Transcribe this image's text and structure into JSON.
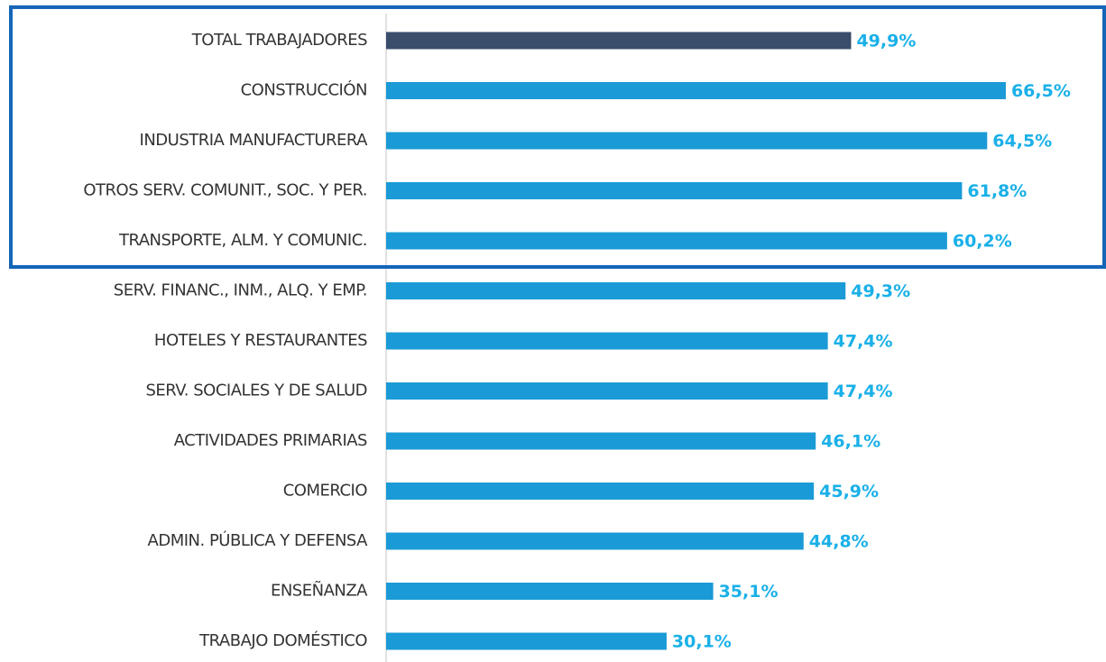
{
  "chart_data": {
    "type": "hbar",
    "categories": [
      "TOTAL TRABAJADORES",
      "CONSTRUCCIÓN",
      "INDUSTRIA MANUFACTURERA",
      "OTROS SERV. COMUNIT., SOC. Y PER.",
      "TRANSPORTE, ALM. Y COMUNIC.",
      "SERV. FINANC., INM., ALQ. Y EMP.",
      "HOTELES Y RESTAURANTES",
      "SERV. SOCIALES Y DE SALUD",
      "ACTIVIDADES PRIMARIAS",
      "COMERCIO",
      "ADMIN. PÚBLICA Y DEFENSA",
      "ENSEÑANZA",
      "TRABAJO DOMÉSTICO"
    ],
    "values": [
      49.9,
      66.5,
      64.5,
      61.8,
      60.2,
      49.3,
      47.4,
      47.4,
      46.1,
      45.9,
      44.8,
      35.1,
      30.1
    ],
    "value_labels": [
      "49,9%",
      "66,5%",
      "64,5%",
      "61,8%",
      "60,2%",
      "49,3%",
      "47,4%",
      "47,4%",
      "46,1%",
      "45,9%",
      "44,8%",
      "35,1%",
      "30,1%"
    ],
    "colors": [
      "#3a4d6b",
      "#1a9ad6",
      "#1a9ad6",
      "#1a9ad6",
      "#1a9ad6",
      "#1a9ad6",
      "#1a9ad6",
      "#1a9ad6",
      "#1a9ad6",
      "#1a9ad6",
      "#1a9ad6",
      "#1a9ad6",
      "#1a9ad6"
    ],
    "label_color": "#1ab0e8"
  }
}
